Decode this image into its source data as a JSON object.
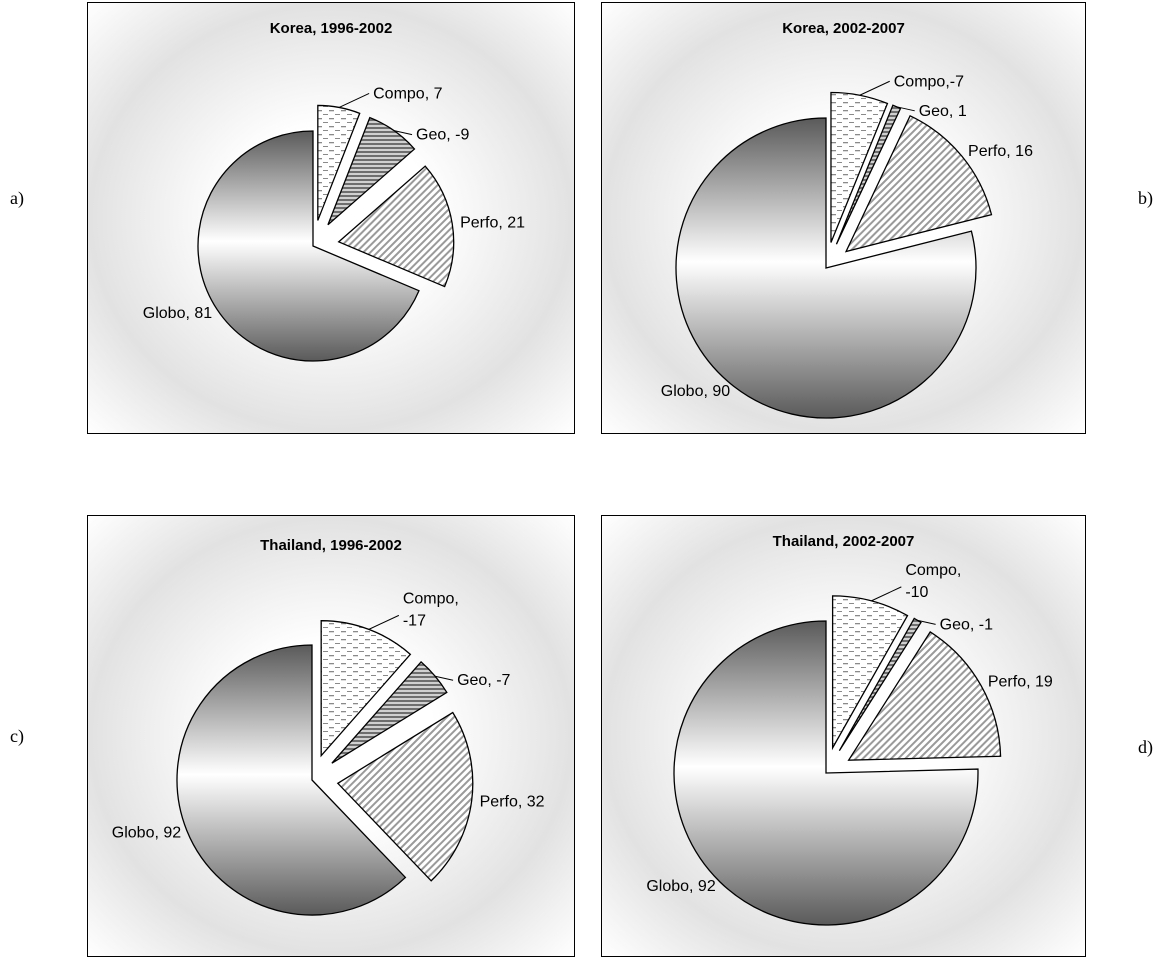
{
  "panel_labels": [
    "a)",
    "b)",
    "c)",
    "d)"
  ],
  "colors": {
    "globo_light": "#ffffff",
    "globo_dark": "#5a5a5a",
    "geo_stripes": "#6e6e6e",
    "perfo_hatch": "#9a9a9a",
    "compo_dash": "#8a8a8a",
    "slice_border": "#000000"
  },
  "chart_data": [
    {
      "type": "pie",
      "title": "Korea, 1996-2002",
      "slices": [
        {
          "name": "Compo",
          "value": 7,
          "label": "Compo, 7"
        },
        {
          "name": "Geo",
          "value": -9,
          "label": "Geo, -9"
        },
        {
          "name": "Perfo",
          "value": 21,
          "label": "Perfo, 21"
        },
        {
          "name": "Globo",
          "value": 81,
          "label": "Globo, 81"
        }
      ]
    },
    {
      "type": "pie",
      "title": "Korea, 2002-2007",
      "slices": [
        {
          "name": "Compo",
          "value": -7,
          "label": "Compo,-7"
        },
        {
          "name": "Geo",
          "value": 1,
          "label": "Geo, 1"
        },
        {
          "name": "Perfo",
          "value": 16,
          "label": "Perfo, 16"
        },
        {
          "name": "Globo",
          "value": 90,
          "label": "Globo, 90"
        }
      ]
    },
    {
      "type": "pie",
      "title": "Thailand, 1996-2002",
      "slices": [
        {
          "name": "Compo",
          "value": -17,
          "label": "Compo,\n-17"
        },
        {
          "name": "Geo",
          "value": -7,
          "label": "Geo, -7"
        },
        {
          "name": "Perfo",
          "value": 32,
          "label": "Perfo, 32"
        },
        {
          "name": "Globo",
          "value": 92,
          "label": "Globo, 92"
        }
      ]
    },
    {
      "type": "pie",
      "title": "Thailand, 2002-2007",
      "slices": [
        {
          "name": "Compo",
          "value": -10,
          "label": "Compo,\n-10"
        },
        {
          "name": "Geo",
          "value": -1,
          "label": "Geo, -1"
        },
        {
          "name": "Perfo",
          "value": 19,
          "label": "Perfo, 19"
        },
        {
          "name": "Globo",
          "value": 92,
          "label": "Globo, 92"
        }
      ]
    }
  ]
}
